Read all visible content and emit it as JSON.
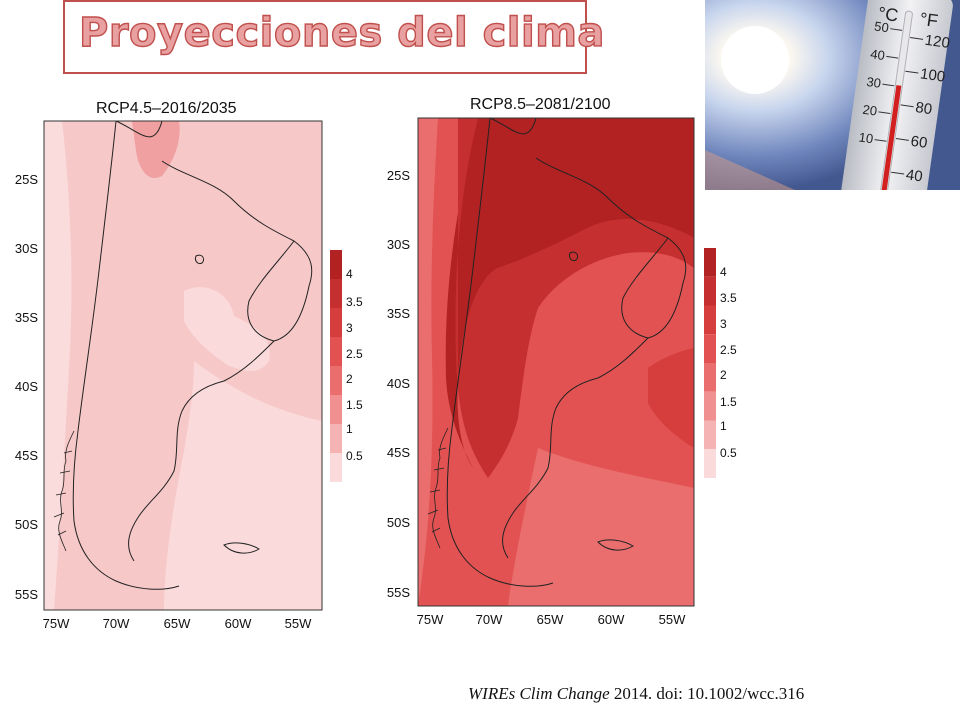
{
  "header": {
    "title": "Proyecciones del clima"
  },
  "maps": [
    {
      "title": "RCP4.5–2016/2035",
      "lat_labels": [
        "25S",
        "30S",
        "35S",
        "40S",
        "45S",
        "50S",
        "55S"
      ],
      "lon_labels": [
        "75W",
        "70W",
        "65W",
        "60W",
        "55W"
      ],
      "legend_labels": [
        "4",
        "3.5",
        "3",
        "2.5",
        "2",
        "1.5",
        "1",
        "0.5"
      ]
    },
    {
      "title": "RCP8.5–2081/2100",
      "lat_labels": [
        "25S",
        "30S",
        "35S",
        "40S",
        "45S",
        "50S",
        "55S"
      ],
      "lon_labels": [
        "75W",
        "70W",
        "65W",
        "60W",
        "55W"
      ],
      "legend_labels": [
        "4",
        "3.5",
        "3",
        "2.5",
        "2",
        "1.5",
        "1",
        "0.5"
      ]
    }
  ],
  "legend_colors": [
    "#b22222",
    "#c62f2f",
    "#d63d3d",
    "#e25252",
    "#ea6e6e",
    "#f09090",
    "#f5b3b3",
    "#fadada"
  ],
  "thermometer": {
    "celsius_symbol": "°C",
    "fahrenheit_symbol": "°F",
    "celsius_ticks": [
      "50",
      "40",
      "30",
      "20",
      "10"
    ],
    "fahrenheit_ticks": [
      "120",
      "100",
      "80",
      "60",
      "40"
    ]
  },
  "citation": {
    "journal": "WIREs Clim Change",
    "rest": " 2014. doi: 10.1002/wcc.316"
  }
}
